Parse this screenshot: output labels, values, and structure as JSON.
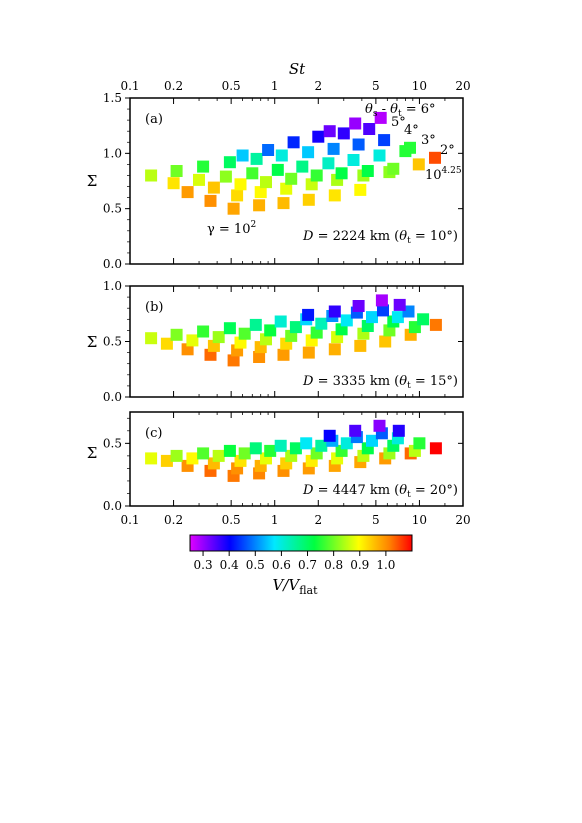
{
  "figure": {
    "top_axis_label": "St",
    "x_ticks": [
      "0.1",
      "0.2",
      "0.5",
      "1",
      "2",
      "5",
      "10",
      "20"
    ],
    "x_tick_values": [
      0.1,
      0.2,
      0.5,
      1,
      2,
      5,
      10,
      20
    ],
    "xlim": [
      0.1,
      20
    ],
    "x_scale": "log",
    "y_label": "Σ",
    "colorbar": {
      "label": "V/V_flat",
      "label_main": "V/V",
      "label_sub": "flat",
      "ticks": [
        "0.3",
        "0.4",
        "0.5",
        "0.6",
        "0.7",
        "0.8",
        "0.9",
        "1.0"
      ],
      "tick_values": [
        0.3,
        0.4,
        0.5,
        0.6,
        0.7,
        0.8,
        0.9,
        1.0
      ],
      "range": [
        0.25,
        1.1
      ],
      "colormap": "rainbow (magenta → blue → cyan → green → yellow → orange → red)"
    }
  },
  "chart_data": [
    {
      "type": "scatter",
      "panel": "(a)",
      "annotation": "D = 2224 km (θt = 10°)",
      "ann_parts": {
        "D": "D",
        "eq": " = 2224 km (",
        "theta": "θ",
        "t": "t",
        "tail": " = 10°)"
      },
      "ylim": [
        0,
        1.5
      ],
      "y_ticks": [
        "0.0",
        "0.5",
        "1.0",
        "1.5"
      ],
      "y_tick_values": [
        0,
        0.5,
        1.0,
        1.5
      ],
      "gamma_label": {
        "text": "γ = 10",
        "sup": "2"
      },
      "right_labels": {
        "theta_prefix": "θ",
        "s": "s",
        "mid": " - ",
        "theta2": "θ",
        "t": "t",
        "eq": " = 6°",
        "l5": "5°",
        "l4": "4°",
        "l3": "3°",
        "l2": "2°",
        "l10": "10",
        "l10sup": "4.25"
      },
      "series": [
        {
          "x": [
            0.52,
            0.78,
            1.15,
            1.72,
            2.6,
            3.9
          ],
          "y": [
            0.5,
            0.53,
            0.55,
            0.58,
            0.62,
            0.67
          ],
          "c": [
            0.98,
            0.97,
            0.96,
            0.94,
            0.92,
            0.9
          ]
        },
        {
          "x": [
            0.36,
            0.55,
            0.8,
            1.2,
            1.8,
            2.7,
            4.1,
            6.2
          ],
          "y": [
            0.57,
            0.62,
            0.65,
            0.68,
            0.72,
            0.76,
            0.8,
            0.83
          ],
          "c": [
            1.0,
            0.93,
            0.9,
            0.88,
            0.86,
            0.84,
            0.83,
            0.82
          ]
        },
        {
          "x": [
            0.25,
            0.38,
            0.58,
            0.87,
            1.3,
            1.95,
            2.9,
            4.4,
            6.6,
            9.9
          ],
          "y": [
            0.65,
            0.69,
            0.72,
            0.74,
            0.77,
            0.8,
            0.82,
            0.84,
            0.86,
            0.9
          ],
          "c": [
            0.99,
            0.95,
            0.9,
            0.85,
            0.8,
            0.76,
            0.72,
            0.72,
            0.8,
            0.95
          ]
        },
        {
          "x": [
            0.2,
            0.3,
            0.46,
            0.7,
            1.05,
            1.55,
            2.35,
            3.5,
            5.3,
            8.0
          ],
          "y": [
            0.73,
            0.76,
            0.79,
            0.82,
            0.85,
            0.88,
            0.91,
            0.94,
            0.98,
            1.02
          ],
          "c": [
            0.92,
            0.87,
            0.82,
            0.77,
            0.72,
            0.67,
            0.62,
            0.6,
            0.6,
            0.75
          ]
        },
        {
          "x": [
            0.14,
            0.21,
            0.32,
            0.49,
            0.75,
            1.12,
            1.7,
            2.55,
            3.8,
            5.7,
            8.6,
            12.8
          ],
          "y": [
            0.8,
            0.84,
            0.88,
            0.92,
            0.95,
            0.98,
            1.01,
            1.04,
            1.08,
            1.12,
            1.05,
            0.96
          ],
          "c": [
            0.85,
            0.8,
            0.75,
            0.7,
            0.65,
            0.6,
            0.55,
            0.5,
            0.47,
            0.45,
            0.75,
            1.05
          ]
        },
        {
          "x": [
            0.6,
            0.9,
            1.35,
            2.0,
            3.0,
            4.5
          ],
          "y": [
            0.98,
            1.03,
            1.1,
            1.15,
            1.18,
            1.22
          ],
          "c": [
            0.55,
            0.48,
            0.43,
            0.39,
            0.37,
            0.35
          ]
        },
        {
          "x": [
            2.4,
            3.6,
            5.4
          ],
          "y": [
            1.2,
            1.27,
            1.32
          ],
          "c": [
            0.33,
            0.3,
            0.28
          ]
        }
      ]
    },
    {
      "type": "scatter",
      "panel": "(b)",
      "annotation": "D = 3335 km (θt = 15°)",
      "ann_parts": {
        "D": "D",
        "eq": " = 3335 km (",
        "theta": "θ",
        "t": "t",
        "tail": " = 15°)"
      },
      "ylim": [
        0,
        1.0
      ],
      "y_ticks": [
        "0.0",
        "0.5",
        "1.0"
      ],
      "y_tick_values": [
        0,
        0.5,
        1.0
      ],
      "series": [
        {
          "x": [
            0.52,
            0.78,
            1.15,
            1.72,
            2.6,
            3.9,
            5.8,
            8.7,
            13.0
          ],
          "y": [
            0.33,
            0.36,
            0.38,
            0.4,
            0.43,
            0.46,
            0.5,
            0.56,
            0.65
          ],
          "c": [
            1.02,
            1.0,
            0.99,
            0.98,
            0.97,
            0.96,
            0.95,
            0.97,
            1.02
          ]
        },
        {
          "x": [
            0.36,
            0.55,
            0.8,
            1.2,
            1.8,
            2.7,
            4.1,
            6.2,
            9.3
          ],
          "y": [
            0.38,
            0.42,
            0.45,
            0.48,
            0.51,
            0.54,
            0.57,
            0.6,
            0.63
          ],
          "c": [
            1.03,
            0.99,
            0.96,
            0.93,
            0.9,
            0.87,
            0.84,
            0.8,
            0.75
          ]
        },
        {
          "x": [
            0.25,
            0.38,
            0.58,
            0.87,
            1.3,
            1.95,
            2.9,
            4.4,
            6.6
          ],
          "y": [
            0.43,
            0.46,
            0.49,
            0.52,
            0.55,
            0.58,
            0.61,
            0.64,
            0.68
          ],
          "c": [
            1.0,
            0.95,
            0.9,
            0.85,
            0.8,
            0.76,
            0.72,
            0.7,
            0.72
          ]
        },
        {
          "x": [
            0.18,
            0.27,
            0.41,
            0.62,
            0.93,
            1.4,
            2.1,
            3.15,
            4.7,
            7.1,
            10.6
          ],
          "y": [
            0.48,
            0.51,
            0.54,
            0.57,
            0.6,
            0.63,
            0.66,
            0.69,
            0.72,
            0.72,
            0.7
          ],
          "c": [
            0.93,
            0.88,
            0.83,
            0.78,
            0.73,
            0.68,
            0.63,
            0.58,
            0.56,
            0.58,
            0.7
          ]
        },
        {
          "x": [
            0.14,
            0.21,
            0.32,
            0.49,
            0.74,
            1.1,
            1.65,
            2.5,
            3.7,
            5.6,
            8.4
          ],
          "y": [
            0.53,
            0.56,
            0.59,
            0.62,
            0.65,
            0.68,
            0.7,
            0.73,
            0.76,
            0.78,
            0.77
          ],
          "c": [
            0.86,
            0.81,
            0.76,
            0.71,
            0.66,
            0.61,
            0.56,
            0.51,
            0.47,
            0.45,
            0.5
          ]
        },
        {
          "x": [
            1.7,
            2.6,
            3.8,
            5.5,
            7.3
          ],
          "y": [
            0.74,
            0.77,
            0.82,
            0.87,
            0.83
          ],
          "c": [
            0.42,
            0.37,
            0.33,
            0.29,
            0.33
          ]
        }
      ]
    },
    {
      "type": "scatter",
      "panel": "(c)",
      "annotation": "D = 4447 km (θt = 20°)",
      "ann_parts": {
        "D": "D",
        "eq": " = 4447 km (",
        "theta": "θ",
        "t": "t",
        "tail": " = 20°)"
      },
      "ylim": [
        0,
        0.75
      ],
      "y_ticks": [
        "0.0",
        "0.5"
      ],
      "y_tick_values": [
        0,
        0.5
      ],
      "series": [
        {
          "x": [
            0.52,
            0.78,
            1.15,
            1.72,
            2.6,
            3.9,
            5.8,
            8.7,
            13.0
          ],
          "y": [
            0.24,
            0.26,
            0.28,
            0.3,
            0.32,
            0.35,
            0.38,
            0.42,
            0.46
          ],
          "c": [
            1.02,
            1.01,
            1.0,
            0.99,
            0.98,
            0.98,
            0.99,
            1.03,
            1.1
          ]
        },
        {
          "x": [
            0.36,
            0.55,
            0.8,
            1.2,
            1.8,
            2.7,
            4.1,
            6.2,
            9.3
          ],
          "y": [
            0.28,
            0.3,
            0.32,
            0.34,
            0.36,
            0.38,
            0.4,
            0.42,
            0.44
          ],
          "c": [
            1.03,
            1.0,
            0.97,
            0.94,
            0.91,
            0.88,
            0.85,
            0.83,
            0.85
          ]
        },
        {
          "x": [
            0.25,
            0.38,
            0.58,
            0.87,
            1.3,
            1.95,
            2.9,
            4.4,
            6.6,
            10.0
          ],
          "y": [
            0.32,
            0.34,
            0.36,
            0.38,
            0.4,
            0.42,
            0.44,
            0.46,
            0.48,
            0.5
          ],
          "c": [
            1.0,
            0.96,
            0.92,
            0.88,
            0.84,
            0.8,
            0.76,
            0.72,
            0.7,
            0.75
          ]
        },
        {
          "x": [
            0.18,
            0.27,
            0.41,
            0.62,
            0.93,
            1.4,
            2.1,
            3.15,
            4.7,
            7.1
          ],
          "y": [
            0.36,
            0.38,
            0.4,
            0.42,
            0.44,
            0.46,
            0.48,
            0.5,
            0.52,
            0.54
          ],
          "c": [
            0.94,
            0.9,
            0.85,
            0.8,
            0.75,
            0.7,
            0.65,
            0.6,
            0.56,
            0.6
          ]
        },
        {
          "x": [
            0.14,
            0.21,
            0.32,
            0.49,
            0.74,
            1.1,
            1.65,
            2.5,
            3.7,
            5.5
          ],
          "y": [
            0.38,
            0.4,
            0.42,
            0.44,
            0.46,
            0.48,
            0.5,
            0.52,
            0.55,
            0.58
          ],
          "c": [
            0.88,
            0.83,
            0.78,
            0.73,
            0.68,
            0.63,
            0.58,
            0.53,
            0.49,
            0.47
          ]
        },
        {
          "x": [
            2.4,
            3.6,
            5.3,
            7.2
          ],
          "y": [
            0.56,
            0.6,
            0.64,
            0.6
          ],
          "c": [
            0.4,
            0.35,
            0.31,
            0.38
          ]
        }
      ]
    }
  ]
}
